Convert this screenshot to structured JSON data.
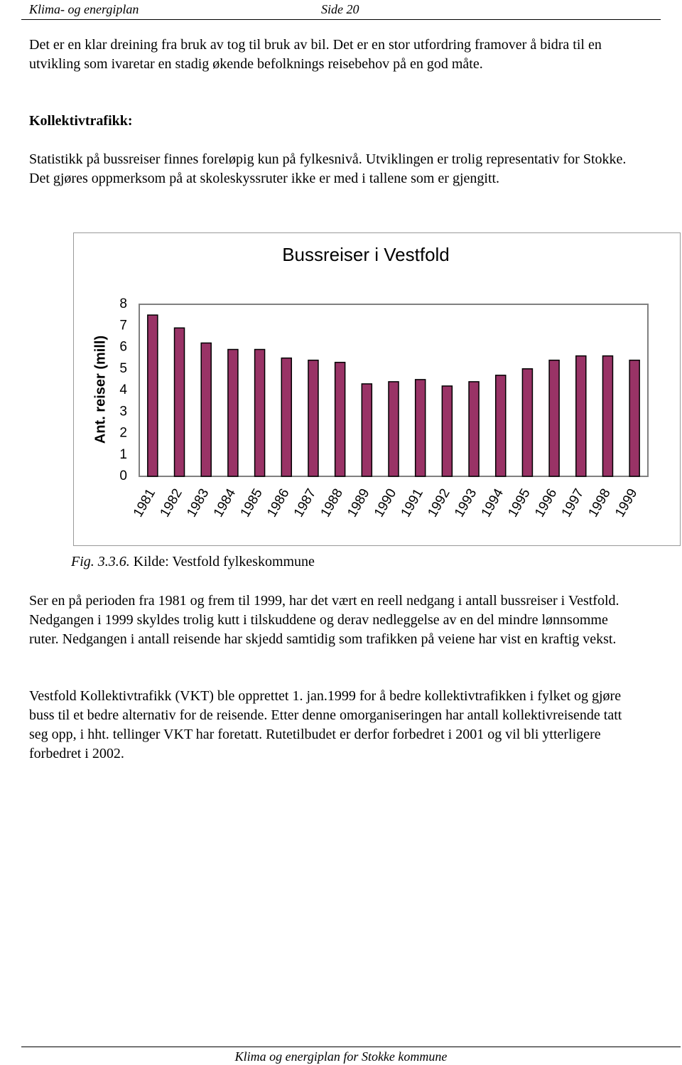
{
  "header": {
    "title": "Klima- og energiplan",
    "page": "Side 20"
  },
  "paragraphs": [
    "Det er en klar dreining fra bruk av tog til bruk av bil.  Det er en stor utfordring framover å bidra til en utvikling som ivaretar en stadig økende befolknings reisebehov på en god måte.",
    "Statistikk på bussreiser finnes foreløpig kun på fylkesnivå. Utviklingen er trolig representativ for Stokke. Det gjøres oppmerksom på at skoleskyssruter ikke er med i tallene som er gjengitt.",
    "Ser en på perioden fra 1981 og frem til 1999, har det vært en reell nedgang i antall bussreiser i Vestfold. Nedgangen i 1999 skyldes trolig kutt i tilskuddene og derav nedleggelse av en del mindre lønnsomme ruter. Nedgangen i antall reisende har skjedd samtidig som trafikken på veiene har vist en kraftig vekst.",
    "Vestfold Kollektivtrafikk (VKT) ble opprettet 1. jan.1999 for å bedre kollektivtrafikken i fylket og gjøre buss til et bedre alternativ for de reisende. Etter denne omorganiseringen har antall kollektivreisende tatt seg opp, i hht. tellinger VKT har foretatt. Rutetilbudet er derfor forbedret i 2001 og vil bli ytterligere forbedret i 2002."
  ],
  "heading": "Kollektivtrafikk:",
  "chart_data": {
    "type": "bar",
    "title": "Bussreiser i Vestfold",
    "y_label": "Ant. reiser (mill)",
    "categories": [
      "1981",
      "1982",
      "1983",
      "1984",
      "1985",
      "1986",
      "1987",
      "1988",
      "1989",
      "1990",
      "1991",
      "1992",
      "1993",
      "1994",
      "1995",
      "1996",
      "1997",
      "1998",
      "1999"
    ],
    "values": [
      7.5,
      6.9,
      6.2,
      5.9,
      5.9,
      5.5,
      5.4,
      5.3,
      4.3,
      4.4,
      4.5,
      4.2,
      4.4,
      4.7,
      5.0,
      5.4,
      5.6,
      5.6,
      5.4
    ],
    "color": "#993366",
    "ylim": [
      0,
      8
    ],
    "yticks": [
      0,
      1,
      2,
      3,
      4,
      5,
      6,
      7,
      8
    ],
    "grid": false
  },
  "caption": {
    "label": "Fig. 3.3.6.",
    "text": "Kilde: Vestfold fylkeskommune"
  },
  "footer": "Klima og energiplan for Stokke kommune"
}
